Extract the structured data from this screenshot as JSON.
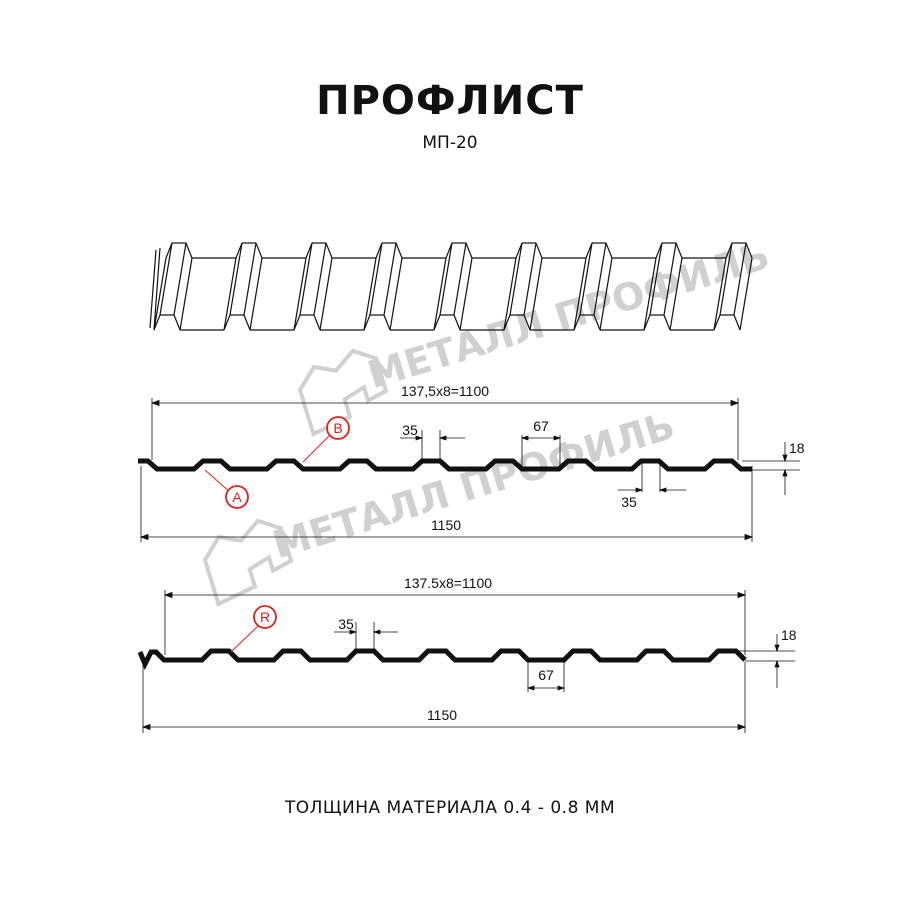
{
  "title": "ПРОФЛИСТ",
  "subtitle": "МП-20",
  "footer": "ТОЛЩИНА МАТЕРИАЛА 0.4 - 0.8 ММ",
  "watermark": "МЕТАЛЛ ПРОФИЛЬ",
  "colors": {
    "profile": "#111111",
    "callout": "#e0201b",
    "watermark": "#d0d0d0"
  },
  "profile_a": {
    "pitch_dim": "137,5x8=1100",
    "width_dim": "1150",
    "top_dim": "35",
    "top_dim_right": "35",
    "bottom_dim": "67",
    "height_dim": "18",
    "callouts": [
      "A",
      "B"
    ]
  },
  "profile_r": {
    "pitch_dim": "137.5x8=1100",
    "width_dim": "1150",
    "top_dim": "35",
    "bottom_dim": "67",
    "height_dim": "18",
    "callouts": [
      "R"
    ]
  }
}
